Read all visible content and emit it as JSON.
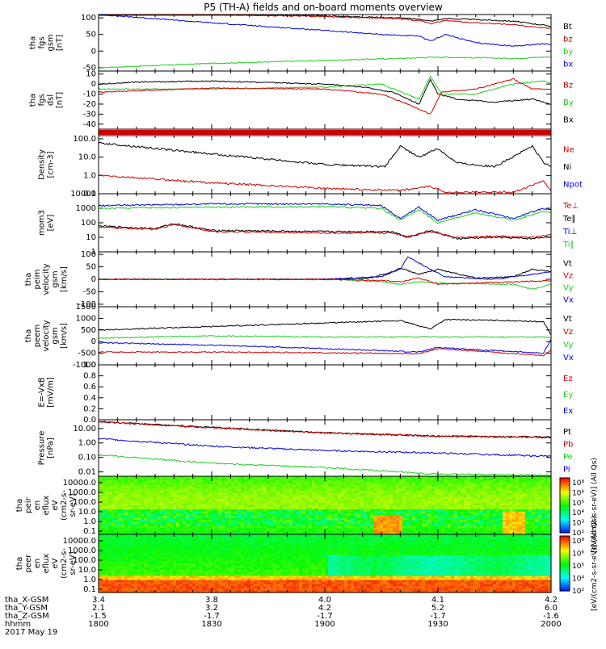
{
  "title": "P5 (TH-A) fields and on-board moments overview",
  "colors": {
    "black": "#000000",
    "red": "#cc0000",
    "green": "#22cc22",
    "blue": "#0000dd"
  },
  "footer": {
    "rows": [
      {
        "label": "tha_X-GSM",
        "values": [
          "3.4",
          "3.8",
          "4.0",
          "4.1",
          "4.2"
        ]
      },
      {
        "label": "tha_Y-GSM",
        "values": [
          "2.1",
          "3.2",
          "4.2",
          "5.2",
          "6.0"
        ]
      },
      {
        "label": "tha_Z-GSM",
        "values": [
          "-1.5",
          "-1.7",
          "-1.7",
          "-1.7",
          "-1.6"
        ]
      },
      {
        "label": "hhmm",
        "values": [
          "1800",
          "1830",
          "1900",
          "1930",
          "2000"
        ]
      }
    ],
    "date": "2017 May 19"
  },
  "chart_data": [
    {
      "id": "p1",
      "type": "line",
      "ylabel_lines": [
        "tha",
        "fgs",
        "gsm",
        "[nT]"
      ],
      "yticks": [
        "100",
        "50",
        "0",
        "-50"
      ],
      "ylim": [
        -60,
        110
      ],
      "legend": [
        {
          "text": "Bt",
          "color": "black"
        },
        {
          "text": "bz",
          "color": "red"
        },
        {
          "text": "by",
          "color": "green"
        },
        {
          "text": "bx",
          "color": "blue"
        }
      ],
      "series": [
        {
          "name": "Bt",
          "color": "black",
          "x": [
            1800,
            1830,
            1900,
            1920,
            1926,
            1928,
            1932,
            1940,
            1950,
            1958,
            2000
          ],
          "values": [
            110,
            110,
            106,
            100,
            95,
            90,
            98,
            95,
            90,
            78,
            75
          ]
        },
        {
          "name": "bz",
          "color": "red",
          "x": [
            1800,
            1830,
            1900,
            1920,
            1926,
            1928,
            1932,
            1940,
            1950,
            1958,
            2000
          ],
          "values": [
            110,
            110,
            104,
            97,
            90,
            82,
            92,
            85,
            80,
            70,
            68
          ]
        },
        {
          "name": "by",
          "color": "green",
          "x": [
            1800,
            1830,
            1900,
            1920,
            1930,
            1940,
            1950,
            1958,
            2000
          ],
          "values": [
            -50,
            -37,
            -28,
            -22,
            -18,
            -20,
            -22,
            -18,
            -18
          ]
        },
        {
          "name": "bx",
          "color": "blue",
          "x": [
            1800,
            1830,
            1900,
            1915,
            1925,
            1928,
            1932,
            1940,
            1950,
            1958,
            2000
          ],
          "values": [
            110,
            85,
            62,
            50,
            45,
            30,
            50,
            25,
            15,
            22,
            20
          ]
        }
      ]
    },
    {
      "id": "p2",
      "type": "line",
      "ylabel_lines": [
        "tha",
        "fgs",
        "dsl",
        "[nT]"
      ],
      "yticks": [
        "10",
        "0",
        "-10",
        "-20",
        "-30",
        "-40"
      ],
      "ylim": [
        -45,
        13
      ],
      "legend": [
        {
          "text": "Bz",
          "color": "red"
        },
        {
          "text": "By",
          "color": "green"
        },
        {
          "text": "Bx",
          "color": "black"
        }
      ],
      "series": [
        {
          "name": "Bx",
          "color": "black",
          "x": [
            1800,
            1810,
            1830,
            1900,
            1910,
            1918,
            1925,
            1928,
            1930,
            1935,
            1945,
            1955,
            2000
          ],
          "values": [
            0,
            2,
            3,
            0,
            -3,
            -8,
            -20,
            5,
            -10,
            -15,
            -18,
            -15,
            -20
          ]
        },
        {
          "name": "By",
          "color": "green",
          "x": [
            1800,
            1830,
            1900,
            1915,
            1925,
            1928,
            1931,
            1940,
            1950,
            1958,
            2000
          ],
          "values": [
            -5,
            -5,
            -3,
            0,
            -15,
            8,
            -10,
            -10,
            0,
            3,
            0
          ]
        },
        {
          "name": "Bz",
          "color": "red",
          "x": [
            1800,
            1830,
            1900,
            1915,
            1922,
            1928,
            1931,
            1940,
            1950,
            1955,
            2000
          ],
          "values": [
            -8,
            -4,
            -5,
            -10,
            -20,
            -30,
            -8,
            -5,
            5,
            -5,
            -5
          ]
        }
      ]
    },
    {
      "id": "p3",
      "type": "bar",
      "ylabel_lines": [],
      "yticks": [],
      "bar_color": "red",
      "bar_value": 1
    },
    {
      "id": "p4",
      "type": "line",
      "log": true,
      "ylabel_lines": [
        "Density",
        "[cm-3]"
      ],
      "yticks": [
        "100.0",
        "10.0",
        "1.0",
        "0.1"
      ],
      "ytick_values": [
        100,
        10,
        1,
        0.1
      ],
      "ylim": [
        0.1,
        150
      ],
      "legend": [
        {
          "text": "Ne",
          "color": "red"
        },
        {
          "text": "Ni",
          "color": "black"
        },
        {
          "text": "Npot",
          "color": "blue"
        }
      ],
      "series": [
        {
          "name": "Ni",
          "color": "black",
          "x": [
            1800,
            1830,
            1900,
            1916,
            1920,
            1925,
            1930,
            1935,
            1945,
            1955,
            1958,
            2000
          ],
          "values": [
            60,
            15,
            4,
            3,
            40,
            10,
            30,
            5,
            3,
            40,
            5,
            3
          ]
        },
        {
          "name": "Ne",
          "color": "red",
          "x": [
            1800,
            1830,
            1900,
            1920,
            1928,
            1932,
            1950,
            1958,
            2000
          ],
          "values": [
            1.0,
            0.4,
            0.2,
            0.15,
            0.25,
            0.12,
            0.12,
            0.5,
            0.15
          ]
        }
      ]
    },
    {
      "id": "p5",
      "type": "line",
      "log": true,
      "ylabel_lines": [
        "mom3",
        "[eV]"
      ],
      "yticks": [
        "10000",
        "1000",
        "100",
        "10",
        "1"
      ],
      "ytick_values": [
        10000,
        1000,
        100,
        10,
        1
      ],
      "ylim": [
        1,
        10000
      ],
      "legend": [
        {
          "text": "Te⊥",
          "color": "red"
        },
        {
          "text": "Te∥",
          "color": "black"
        },
        {
          "text": "Ti⊥",
          "color": "blue"
        },
        {
          "text": "Ti∥",
          "color": "green"
        }
      ],
      "series": [
        {
          "name": "Ti⊥",
          "color": "blue",
          "x": [
            1800,
            1830,
            1900,
            1915,
            1920,
            1925,
            1930,
            1940,
            1950,
            1958,
            2000
          ],
          "values": [
            1500,
            2000,
            2000,
            1500,
            200,
            1200,
            150,
            800,
            200,
            1000,
            800
          ]
        },
        {
          "name": "Ti∥",
          "color": "green",
          "x": [
            1800,
            1830,
            1900,
            1915,
            1920,
            1925,
            1930,
            1940,
            1950,
            1958,
            2000
          ],
          "values": [
            1000,
            1200,
            1300,
            1000,
            150,
            800,
            100,
            500,
            150,
            600,
            500
          ]
        },
        {
          "name": "Te∥",
          "color": "black",
          "x": [
            1800,
            1815,
            1820,
            1830,
            1900,
            1918,
            1922,
            1928,
            1935,
            1945,
            1955,
            2000
          ],
          "values": [
            60,
            40,
            90,
            30,
            25,
            25,
            10,
            30,
            8,
            10,
            8,
            12
          ]
        },
        {
          "name": "Te⊥",
          "color": "red",
          "x": [
            1800,
            1815,
            1820,
            1830,
            1900,
            1918,
            1922,
            1928,
            1935,
            1945,
            1955,
            2000
          ],
          "values": [
            50,
            35,
            80,
            25,
            20,
            20,
            12,
            25,
            10,
            12,
            10,
            15
          ]
        }
      ]
    },
    {
      "id": "p6",
      "type": "line",
      "ylabel_lines": [
        "tha",
        "peim",
        "velocity",
        "gsm",
        "[km/s]"
      ],
      "yticks": [
        "100",
        "50",
        "0",
        "-50",
        "-100"
      ],
      "ylim": [
        -110,
        110
      ],
      "legend": [
        {
          "text": "Vt",
          "color": "black"
        },
        {
          "text": "Vz",
          "color": "red"
        },
        {
          "text": "Vy",
          "color": "green"
        },
        {
          "text": "Vx",
          "color": "blue"
        }
      ],
      "series": [
        {
          "name": "Vt",
          "color": "black",
          "x": [
            1800,
            1900,
            1912,
            1918,
            1920,
            1925,
            1930,
            1940,
            1950,
            1955,
            2000
          ],
          "values": [
            0,
            0,
            5,
            30,
            45,
            20,
            40,
            5,
            10,
            40,
            30
          ]
        },
        {
          "name": "Vx",
          "color": "blue",
          "x": [
            1800,
            1900,
            1915,
            1920,
            1922,
            1928,
            1932,
            1945,
            1955,
            2000
          ],
          "values": [
            0,
            0,
            10,
            40,
            90,
            40,
            10,
            0,
            20,
            30
          ]
        },
        {
          "name": "Vy",
          "color": "green",
          "x": [
            1800,
            1900,
            1915,
            1920,
            1925,
            1930,
            1950,
            1955,
            2000
          ],
          "values": [
            0,
            0,
            -10,
            -20,
            -10,
            -15,
            -20,
            -40,
            -20
          ]
        },
        {
          "name": "Vz",
          "color": "red",
          "x": [
            1800,
            1900,
            1915,
            1920,
            1925,
            1930,
            1950,
            2000
          ],
          "values": [
            0,
            0,
            -5,
            -10,
            5,
            -20,
            -10,
            -5
          ]
        }
      ]
    },
    {
      "id": "p7",
      "type": "line",
      "ylabel_lines": [
        "tha",
        "peem",
        "velocity",
        "gsm",
        "[km/s]"
      ],
      "yticks": [
        "1500",
        "1000",
        "500",
        "0",
        "-500",
        "-1000"
      ],
      "ylim": [
        -1000,
        1500
      ],
      "legend": [
        {
          "text": "Vt",
          "color": "black"
        },
        {
          "text": "Vz",
          "color": "red"
        },
        {
          "text": "Vy",
          "color": "green"
        },
        {
          "text": "Vx",
          "color": "blue"
        }
      ],
      "series": [
        {
          "name": "Vt",
          "color": "black",
          "x": [
            1800,
            1830,
            1900,
            1920,
            1928,
            1932,
            1950,
            1958,
            2000
          ],
          "values": [
            500,
            650,
            800,
            900,
            550,
            950,
            900,
            850,
            300
          ]
        },
        {
          "name": "Vy",
          "color": "green",
          "x": [
            1800,
            1830,
            1900,
            1930,
            1958,
            2000
          ],
          "values": [
            150,
            250,
            200,
            200,
            200,
            150
          ]
        },
        {
          "name": "Vx",
          "color": "blue",
          "x": [
            1800,
            1830,
            1900,
            1925,
            1930,
            1958,
            2000
          ],
          "values": [
            -50,
            -150,
            -300,
            -450,
            -250,
            -500,
            100
          ]
        },
        {
          "name": "Vz",
          "color": "red",
          "x": [
            1800,
            1830,
            1900,
            1925,
            1930,
            1958,
            2000
          ],
          "values": [
            -450,
            -450,
            -480,
            -520,
            -300,
            -600,
            -350
          ]
        }
      ]
    },
    {
      "id": "p8",
      "type": "line",
      "ylabel_lines": [
        "E=-VxB",
        "[mV/m]"
      ],
      "yticks": [
        "1.0",
        "0.8",
        "0.6",
        "0.4",
        "0.2",
        "0.0"
      ],
      "ylim": [
        0,
        1
      ],
      "legend": [
        {
          "text": "Ez",
          "color": "red"
        },
        {
          "text": "Ey",
          "color": "green"
        },
        {
          "text": "Ex",
          "color": "blue"
        }
      ],
      "series": []
    },
    {
      "id": "p9",
      "type": "line",
      "log": true,
      "ylabel_lines": [
        "Pressure",
        "[nPa]"
      ],
      "yticks": [
        "10.00",
        "1.00",
        "0.10",
        "0.01"
      ],
      "ytick_values": [
        10,
        1,
        0.1,
        0.01
      ],
      "ylim": [
        0.005,
        40
      ],
      "legend": [
        {
          "text": "Pt",
          "color": "black"
        },
        {
          "text": "Pb",
          "color": "red"
        },
        {
          "text": "Pe",
          "color": "green"
        },
        {
          "text": "Pi",
          "color": "blue"
        }
      ],
      "series": [
        {
          "name": "Pt",
          "color": "black",
          "x": [
            1800,
            1830,
            1900,
            1930,
            2000
          ],
          "values": [
            30,
            12,
            5,
            3,
            2.5
          ]
        },
        {
          "name": "Pb",
          "color": "red",
          "x": [
            1800,
            1830,
            1900,
            1930,
            2000
          ],
          "values": [
            29,
            11,
            5,
            3,
            2.4
          ]
        },
        {
          "name": "Pi",
          "color": "blue",
          "x": [
            1800,
            1830,
            1900,
            1930,
            2000
          ],
          "values": [
            2,
            0.6,
            0.3,
            0.2,
            0.12
          ]
        },
        {
          "name": "Pe",
          "color": "green",
          "x": [
            1800,
            1830,
            1900,
            1920,
            1930,
            2000
          ],
          "values": [
            0.15,
            0.04,
            0.02,
            0.01,
            0.007,
            0.006
          ]
        }
      ]
    },
    {
      "id": "p10",
      "type": "heatmap",
      "ylabel_lines": [
        "tha",
        "peir",
        "en",
        "eflux",
        "eV",
        "(cm2-s-",
        "sr-eV)"
      ],
      "yticks": [
        "10000.0",
        "1000.0",
        "100.0",
        "10.0",
        "1.0",
        "0.1"
      ],
      "colorbar": {
        "label": "[eV/(cm2-s-sr-eV)] (All Qs)",
        "ticks": [
          "10⁸",
          "10⁶",
          "10⁵",
          "10⁴",
          "10³",
          "10²"
        ]
      }
    },
    {
      "id": "p11",
      "type": "heatmap",
      "ylabel_lines": [
        "tha",
        "peer",
        "en",
        "eflux",
        "eV",
        "(cm2-s-",
        "sr-eV)"
      ],
      "yticks": [
        "10000.0",
        "1000.0",
        "100.0",
        "10.0",
        "1.0",
        "0.1"
      ],
      "colorbar": {
        "label": "[eV/(cm2-s-sr-eV)] (All Qs)",
        "ticks": [
          "10⁸",
          "10⁶",
          "10⁵",
          "10⁴",
          "10²"
        ]
      }
    }
  ]
}
